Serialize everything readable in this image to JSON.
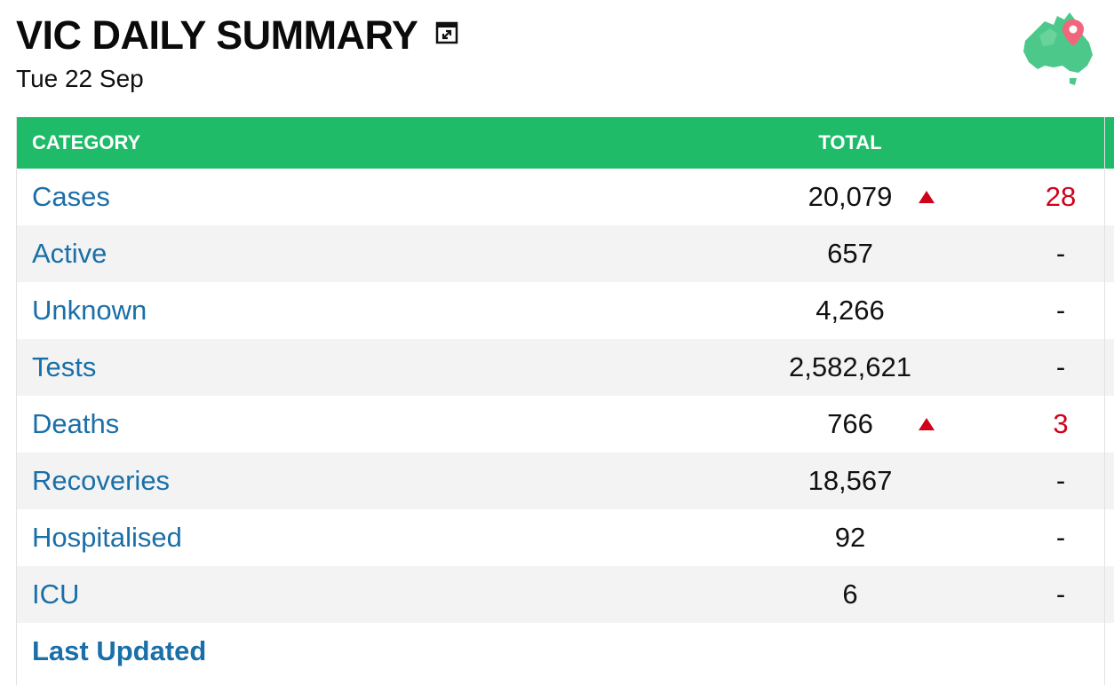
{
  "header": {
    "title": "VIC DAILY SUMMARY",
    "date": "Tue 22 Sep",
    "popout_icon": "popout-icon",
    "map_icon": "australia-map-pin-icon",
    "accent_color": "#1fbb69"
  },
  "table": {
    "columns": {
      "category": "CATEGORY",
      "total": "TOTAL"
    },
    "rows": [
      {
        "category": "Cases",
        "total": "20,079",
        "change": "28",
        "trend": "up"
      },
      {
        "category": "Active",
        "total": "657",
        "change": "-",
        "trend": "none"
      },
      {
        "category": "Unknown",
        "total": "4,266",
        "change": "-",
        "trend": "none"
      },
      {
        "category": "Tests",
        "total": "2,582,621",
        "change": "-",
        "trend": "none"
      },
      {
        "category": "Deaths",
        "total": "766",
        "change": "3",
        "trend": "up"
      },
      {
        "category": "Recoveries",
        "total": "18,567",
        "change": "-",
        "trend": "none"
      },
      {
        "category": "Hospitalised",
        "total": "92",
        "change": "-",
        "trend": "none"
      },
      {
        "category": "ICU",
        "total": "6",
        "change": "-",
        "trend": "none"
      }
    ],
    "footer_label": "Last Updated",
    "link_color": "#1a6fa8",
    "increase_color": "#d0021b"
  }
}
